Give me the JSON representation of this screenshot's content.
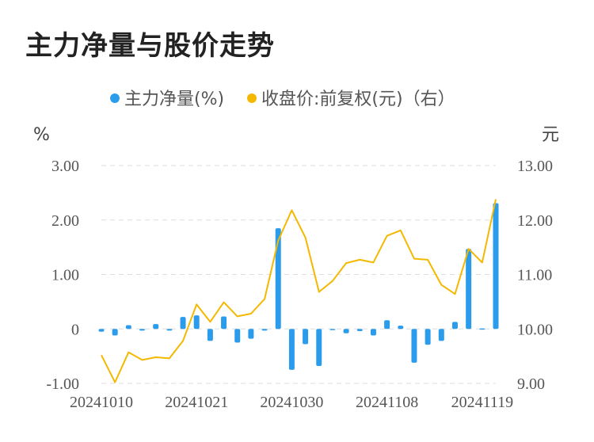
{
  "title": "主力净量与股价走势",
  "chart_data": {
    "type": "bar+line",
    "legend": [
      {
        "name": "主力净量(%)",
        "color": "#2b9cec"
      },
      {
        "name": "收盘价:前复权(元)（右）",
        "color": "#f5b800"
      }
    ],
    "left_unit": "%",
    "right_unit": "元",
    "left_ticks": [
      "3.00",
      "2.00",
      "1.00",
      "0",
      "-1.00"
    ],
    "right_ticks": [
      "13.00",
      "12.00",
      "11.00",
      "10.00",
      "9.00"
    ],
    "ylim_left": [
      -1,
      3
    ],
    "ylim_right": [
      9,
      13
    ],
    "x_tick_labels": [
      "20241010",
      "20241021",
      "20241030",
      "20241108",
      "20241119"
    ],
    "x_tick_indices": [
      0,
      7,
      14,
      21,
      28
    ],
    "categories": [
      "20241010",
      "20241011",
      "20241014",
      "20241015",
      "20241016",
      "20241017",
      "20241018",
      "20241021",
      "20241022",
      "20241023",
      "20241024",
      "20241025",
      "20241028",
      "20241029",
      "20241030",
      "20241031",
      "20241101",
      "20241104",
      "20241105",
      "20241106",
      "20241107",
      "20241108",
      "20241111",
      "20241112",
      "20241113",
      "20241114",
      "20241115",
      "20241118",
      "20241119",
      "20241120"
    ],
    "series": [
      {
        "name": "主力净量(%)",
        "type": "bar",
        "values": [
          -0.05,
          -0.12,
          0.07,
          -0.03,
          0.09,
          -0.03,
          0.22,
          0.25,
          -0.22,
          0.23,
          -0.25,
          -0.18,
          -0.03,
          1.85,
          -0.75,
          -0.28,
          -0.68,
          -0.01,
          -0.08,
          -0.04,
          -0.12,
          0.16,
          0.06,
          -0.62,
          -0.29,
          -0.22,
          0.13,
          1.47,
          0.01,
          2.31
        ]
      },
      {
        "name": "收盘价:前复权(元)（右）",
        "type": "line",
        "values": [
          9.52,
          9.02,
          9.57,
          9.43,
          9.48,
          9.46,
          9.78,
          10.45,
          10.13,
          10.49,
          10.23,
          10.28,
          10.55,
          11.62,
          12.18,
          11.68,
          10.68,
          10.88,
          11.21,
          11.27,
          11.22,
          11.71,
          11.81,
          11.29,
          11.27,
          10.81,
          10.64,
          11.47,
          11.22,
          12.38
        ]
      }
    ]
  }
}
